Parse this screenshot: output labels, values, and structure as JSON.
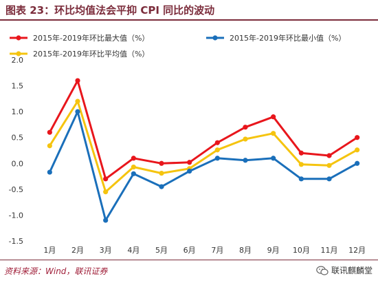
{
  "header": {
    "title": "图表 23：环比均值法会平抑 CPI 同比的波动"
  },
  "footer": {
    "source": "资料来源：Wind，联讯证券",
    "brand": "联讯麒麟堂",
    "brand_icon": "wechat-icon"
  },
  "colors": {
    "max": "#e8161c",
    "min": "#1a6fba",
    "avg": "#f5c40f",
    "title": "#7b2c3b"
  },
  "chart_data": {
    "type": "line",
    "categories": [
      "1月",
      "2月",
      "3月",
      "4月",
      "5月",
      "6月",
      "7月",
      "8月",
      "9月",
      "10月",
      "11月",
      "12月"
    ],
    "ylim": [
      -1.5,
      2.0
    ],
    "yticks": [
      "2.0",
      "1.5",
      "1.0",
      "0.5",
      "0.0",
      "-0.5",
      "-1.0",
      "-1.5"
    ],
    "ytick_values": [
      2.0,
      1.5,
      1.0,
      0.5,
      0.0,
      -0.5,
      -1.0,
      -1.5
    ],
    "legend_position": "top",
    "series": [
      {
        "name": "2015年-2019年环比最大值（%）",
        "key": "max",
        "values": [
          0.6,
          1.6,
          -0.3,
          0.1,
          0.0,
          0.02,
          0.4,
          0.7,
          0.9,
          0.2,
          0.15,
          0.5
        ]
      },
      {
        "name": "2015年-2019年环比最小值（%）",
        "key": "min",
        "values": [
          -0.17,
          1.0,
          -1.1,
          -0.2,
          -0.45,
          -0.15,
          0.1,
          0.06,
          0.1,
          -0.3,
          -0.3,
          0.0
        ]
      },
      {
        "name": "2015年-2019年环比平均值（%）",
        "key": "avg",
        "values": [
          0.34,
          1.2,
          -0.55,
          -0.07,
          -0.19,
          -0.1,
          0.26,
          0.47,
          0.58,
          -0.02,
          -0.04,
          0.26
        ]
      }
    ]
  }
}
